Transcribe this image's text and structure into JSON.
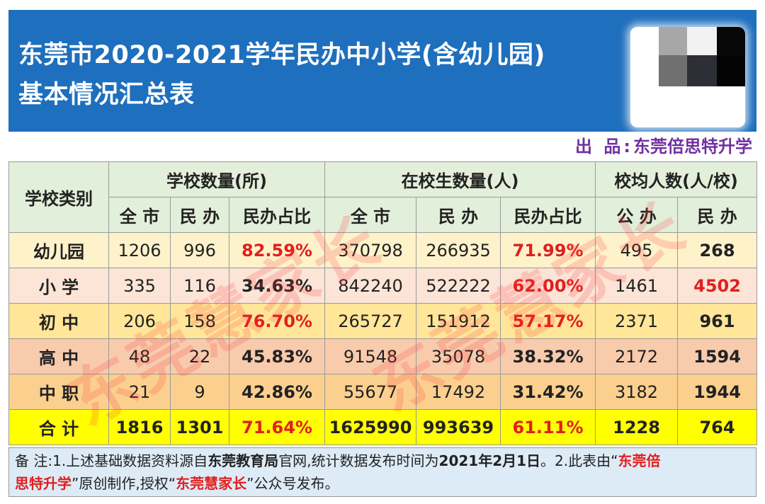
{
  "header": {
    "title_line1": "东莞市2020-2021学年民办中小学(含幼儿园)",
    "title_line2": "基本情况汇总表",
    "qr_code": "blurred-qr-code"
  },
  "producer": {
    "prefix": "出 品:",
    "name": "东莞倍思特升学"
  },
  "table": {
    "headers": {
      "category": "学校类别",
      "group_schools": "学校数量(所)",
      "group_students": "在校生数量(人)",
      "group_avg": "校均人数(人/校)",
      "sub": [
        "全 市",
        "民 办",
        "民办占比",
        "全 市",
        "民 办",
        "民办占比",
        "公 办",
        "民 办"
      ]
    },
    "rows": [
      {
        "category": "幼儿园",
        "schools_total": "1206",
        "schools_private": "996",
        "schools_ratio": "82.59%",
        "students_total": "370798",
        "students_private": "266935",
        "students_ratio": "71.99%",
        "avg_public": "495",
        "avg_private": "268"
      },
      {
        "category": "小 学",
        "schools_total": "335",
        "schools_private": "116",
        "schools_ratio": "34.63%",
        "students_total": "842240",
        "students_private": "522222",
        "students_ratio": "62.00%",
        "avg_public": "1461",
        "avg_private": "4502"
      },
      {
        "category": "初 中",
        "schools_total": "206",
        "schools_private": "158",
        "schools_ratio": "76.70%",
        "students_total": "265727",
        "students_private": "151912",
        "students_ratio": "57.17%",
        "avg_public": "2371",
        "avg_private": "961"
      },
      {
        "category": "高 中",
        "schools_total": "48",
        "schools_private": "22",
        "schools_ratio": "45.83%",
        "students_total": "91548",
        "students_private": "35078",
        "students_ratio": "38.32%",
        "avg_public": "2172",
        "avg_private": "1594"
      },
      {
        "category": "中 职",
        "schools_total": "21",
        "schools_private": "9",
        "schools_ratio": "42.86%",
        "students_total": "55677",
        "students_private": "17492",
        "students_ratio": "31.42%",
        "avg_public": "3182",
        "avg_private": "1944"
      },
      {
        "category": "合 计",
        "schools_total": "1816",
        "schools_private": "1301",
        "schools_ratio": "71.64%",
        "students_total": "1625990",
        "students_private": "993639",
        "students_ratio": "61.11%",
        "avg_public": "1228",
        "avg_private": "764"
      }
    ]
  },
  "watermark": {
    "text": "东莞慧家长"
  },
  "note": {
    "p1": "备 注:1.上述基础数据资料源自",
    "b1": "东莞教育局",
    "p2": "官网,统计数据发布时间为",
    "b2": "2021年2月1日",
    "p3": "。2.此表由“",
    "r1a": "东莞倍",
    "r1b": "思特升学",
    "p4": "”原创制作,授权“",
    "r2": "东莞慧家长",
    "p5": "”公众号发布。"
  },
  "colors": {
    "header_bg": "#1e6fbd",
    "producer": "#7030a0",
    "highlight_red": "#e0201f",
    "total_row": "#ffff00",
    "header_rows": "#e2efda",
    "note_bg": "#ddebf7"
  }
}
